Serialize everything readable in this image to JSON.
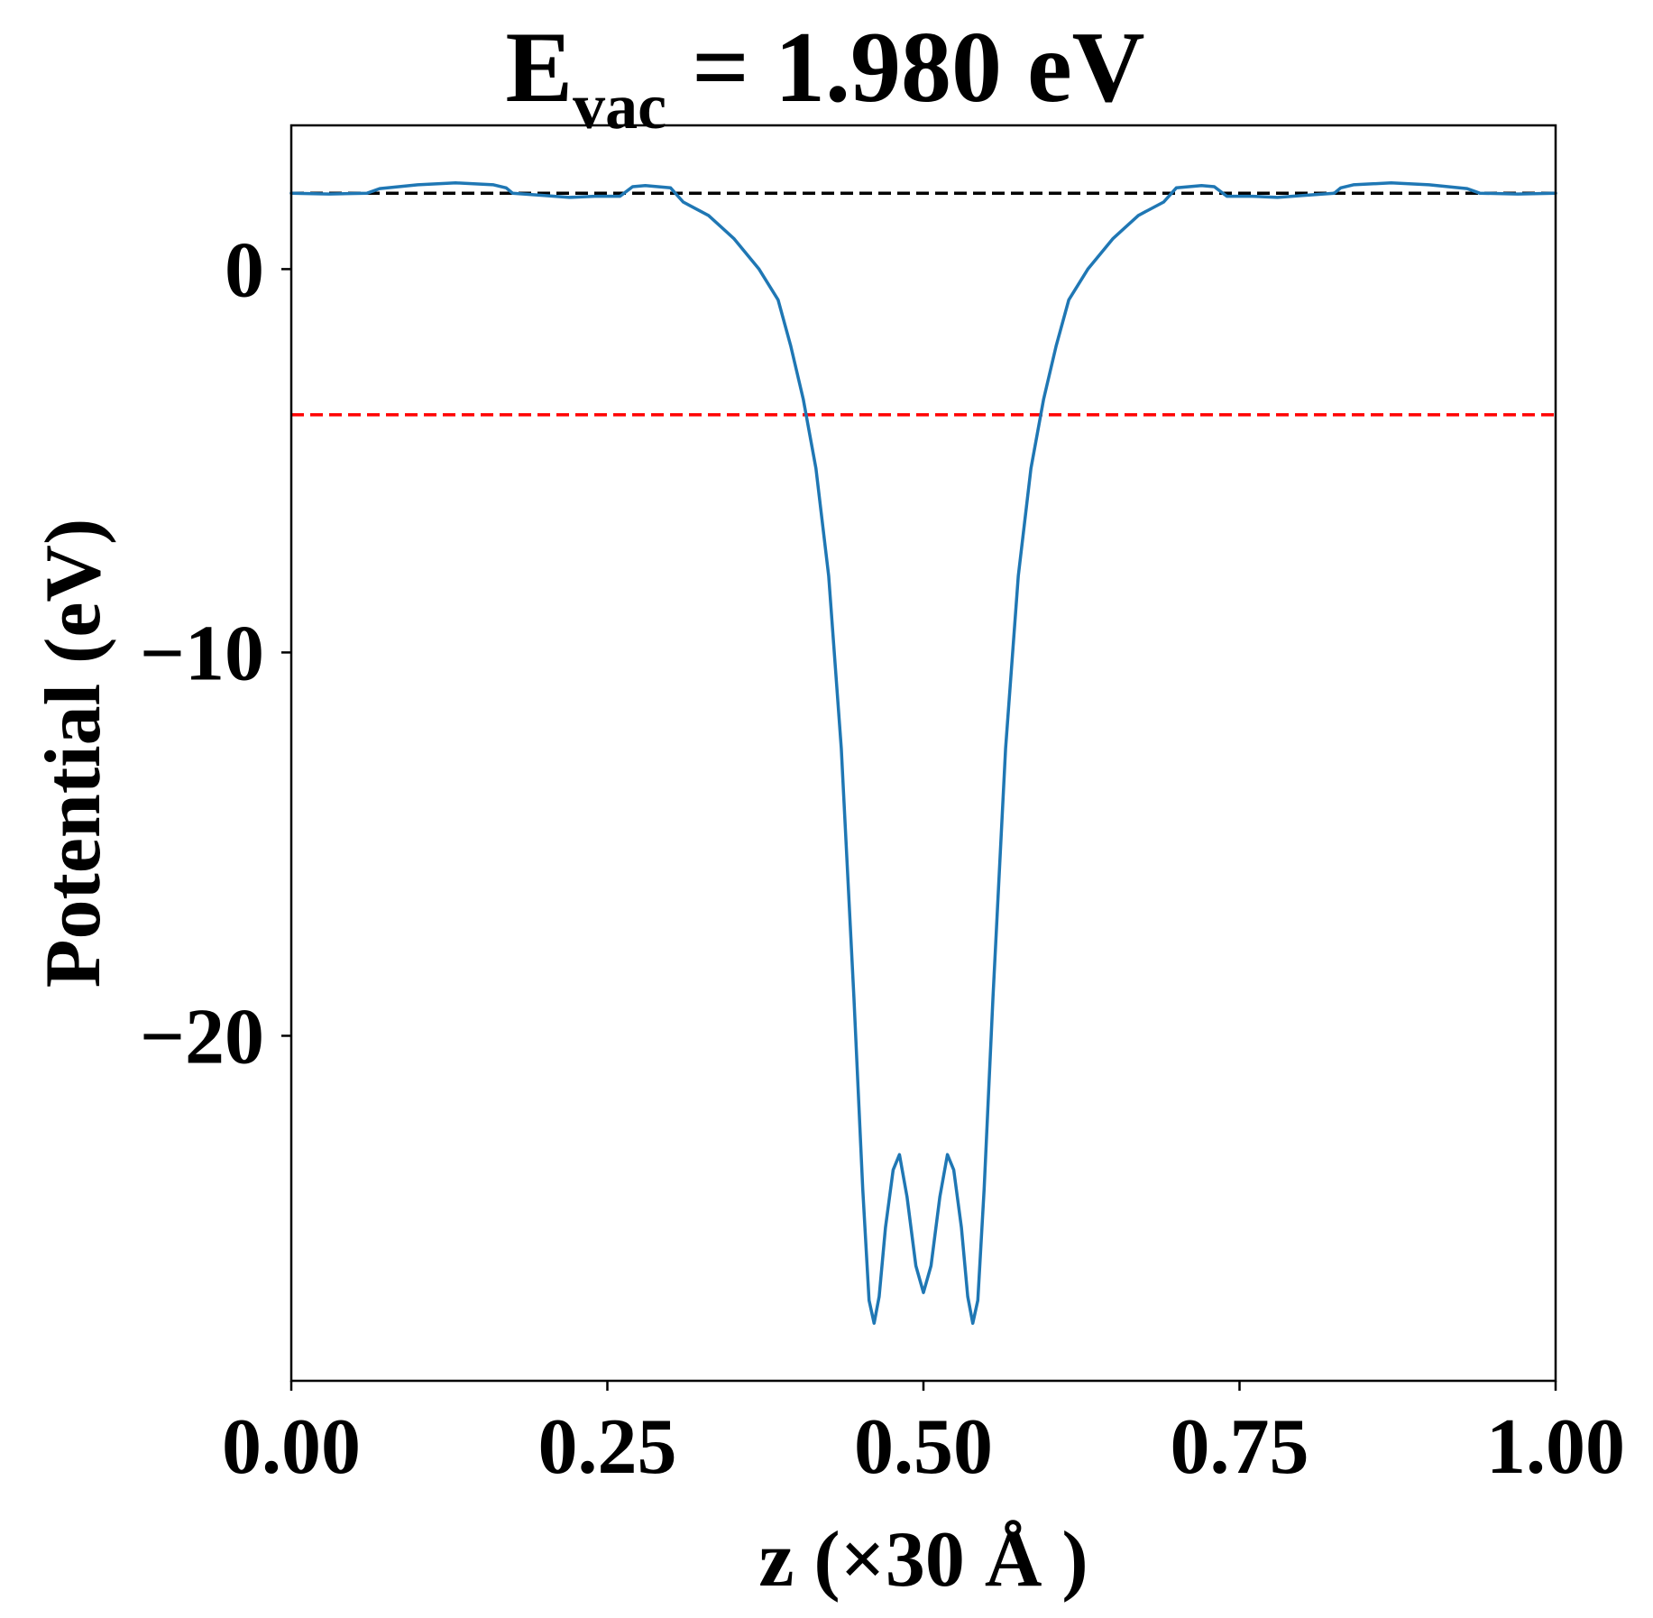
{
  "chart_data": {
    "type": "line",
    "title": {
      "main": "E",
      "subscript": "vac",
      "rest": " = 1.980 eV"
    },
    "xlabel": "z (×30 Å )",
    "ylabel": "Potential (eV)",
    "xlim": [
      0.0,
      1.0
    ],
    "ylim": [
      -29.0,
      3.75
    ],
    "xticks": [
      {
        "value": 0.0,
        "label": "0.00"
      },
      {
        "value": 0.25,
        "label": "0.25"
      },
      {
        "value": 0.5,
        "label": "0.50"
      },
      {
        "value": 0.75,
        "label": "0.75"
      },
      {
        "value": 1.0,
        "label": "1.00"
      }
    ],
    "yticks": [
      {
        "value": 0,
        "label": "0"
      },
      {
        "value": -10,
        "label": "−10"
      },
      {
        "value": -20,
        "label": "−20"
      }
    ],
    "grid": false,
    "reference_lines": [
      {
        "y": 1.98,
        "color": "#000000",
        "style": "dashed"
      },
      {
        "y": -3.8,
        "color": "#ff0000",
        "style": "dashed"
      }
    ],
    "series": [
      {
        "color": "#1f77b4",
        "points": [
          [
            0.0,
            1.98
          ],
          [
            0.03,
            1.96
          ],
          [
            0.06,
            1.98
          ],
          [
            0.07,
            2.1
          ],
          [
            0.1,
            2.2
          ],
          [
            0.13,
            2.25
          ],
          [
            0.16,
            2.2
          ],
          [
            0.17,
            2.12
          ],
          [
            0.175,
            1.98
          ],
          [
            0.2,
            1.92
          ],
          [
            0.22,
            1.87
          ],
          [
            0.24,
            1.9
          ],
          [
            0.26,
            1.9
          ],
          [
            0.27,
            2.15
          ],
          [
            0.28,
            2.18
          ],
          [
            0.3,
            2.12
          ],
          [
            0.31,
            1.75
          ],
          [
            0.33,
            1.4
          ],
          [
            0.35,
            0.8
          ],
          [
            0.37,
            0.0
          ],
          [
            0.385,
            -0.8
          ],
          [
            0.395,
            -2.0
          ],
          [
            0.405,
            -3.4
          ],
          [
            0.415,
            -5.2
          ],
          [
            0.425,
            -8.0
          ],
          [
            0.435,
            -12.5
          ],
          [
            0.445,
            -19.0
          ],
          [
            0.452,
            -24.0
          ],
          [
            0.457,
            -26.9
          ],
          [
            0.461,
            -27.5
          ],
          [
            0.465,
            -26.8
          ],
          [
            0.47,
            -25.0
          ],
          [
            0.476,
            -23.5
          ],
          [
            0.481,
            -23.1
          ],
          [
            0.487,
            -24.2
          ],
          [
            0.494,
            -26.0
          ],
          [
            0.5,
            -26.7
          ],
          [
            0.506,
            -26.0
          ],
          [
            0.513,
            -24.2
          ],
          [
            0.519,
            -23.1
          ],
          [
            0.524,
            -23.5
          ],
          [
            0.53,
            -25.0
          ],
          [
            0.535,
            -26.8
          ],
          [
            0.539,
            -27.5
          ],
          [
            0.543,
            -26.9
          ],
          [
            0.548,
            -24.0
          ],
          [
            0.555,
            -19.0
          ],
          [
            0.565,
            -12.5
          ],
          [
            0.575,
            -8.0
          ],
          [
            0.585,
            -5.2
          ],
          [
            0.595,
            -3.4
          ],
          [
            0.605,
            -2.0
          ],
          [
            0.615,
            -0.8
          ],
          [
            0.63,
            0.0
          ],
          [
            0.65,
            0.8
          ],
          [
            0.67,
            1.4
          ],
          [
            0.69,
            1.75
          ],
          [
            0.7,
            2.12
          ],
          [
            0.72,
            2.18
          ],
          [
            0.73,
            2.15
          ],
          [
            0.74,
            1.9
          ],
          [
            0.76,
            1.9
          ],
          [
            0.78,
            1.87
          ],
          [
            0.8,
            1.92
          ],
          [
            0.825,
            1.98
          ],
          [
            0.83,
            2.12
          ],
          [
            0.84,
            2.2
          ],
          [
            0.87,
            2.25
          ],
          [
            0.9,
            2.2
          ],
          [
            0.93,
            2.1
          ],
          [
            0.94,
            1.98
          ],
          [
            0.97,
            1.96
          ],
          [
            1.0,
            1.98
          ]
        ]
      }
    ]
  }
}
